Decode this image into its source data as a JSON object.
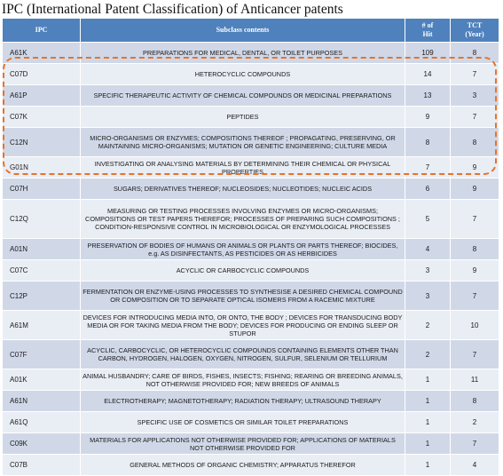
{
  "title": "IPC (International Patent Classification)  of Anticancer  patents",
  "headers": {
    "ipc": "IPC",
    "subclass": "Subclass contents",
    "hits_line1": "# of",
    "hits_line2": "Hit",
    "tct_line1": "TCT",
    "tct_line2": "(Year)"
  },
  "highlight_color": "#e4742b",
  "header_color": "#4f81bd",
  "rows": [
    {
      "ipc": "A61K",
      "content": "PREPARATIONS FOR MEDICAL, DENTAL, OR TOILET PURPOSES",
      "hits": "109",
      "tct": "8"
    },
    {
      "ipc": "C07D",
      "content": "HETEROCYCLIC COMPOUNDS",
      "hits": "14",
      "tct": "7"
    },
    {
      "ipc": "A61P",
      "content": "SPECIFIC THERAPEUTIC ACTIVITY OF CHEMICAL COMPOUNDS OR MEDICINAL PREPARATIONS",
      "hits": "13",
      "tct": "3"
    },
    {
      "ipc": "C07K",
      "content": "PEPTIDES",
      "hits": "9",
      "tct": "7"
    },
    {
      "ipc": "C12N",
      "content": "MICRO-ORGANISMS OR ENZYMES; COMPOSITIONS THEREOF ; PROPAGATING, PRESERVING, OR MAINTAINING MICRO-ORGANISMS; MUTATION OR GENETIC ENGINEERING; CULTURE MEDIA",
      "hits": "8",
      "tct": "8"
    },
    {
      "ipc": "G01N",
      "content": "INVESTIGATING OR ANALYSING MATERIALS BY DETERMINING THEIR CHEMICAL OR PHYSICAL PROPERTIES",
      "hits": "7",
      "tct": "9"
    },
    {
      "ipc": "C07H",
      "content": "SUGARS; DERIVATIVES THEREOF; NUCLEOSIDES; NUCLEOTIDES; NUCLEIC ACIDS",
      "hits": "6",
      "tct": "9"
    },
    {
      "ipc": "C12Q",
      "content": "MEASURING OR TESTING PROCESSES INVOLVING ENZYMES OR MICRO-ORGANISMS; COMPOSITIONS OR TEST PAPERS THEREFOR; PROCESSES OF PREPARING SUCH COMPOSITIONS ; CONDITION-RESPONSIVE CONTROL IN MICROBIOLOGICAL OR ENZYMOLOGICAL PROCESSES",
      "hits": "5",
      "tct": "7"
    },
    {
      "ipc": "A01N",
      "content": "PRESERVATION OF BODIES OF HUMANS OR ANIMALS OR PLANTS OR PARTS THEREOF; BIOCIDES, e.g. AS DISINFECTANTS, AS PESTICIDES OR AS HERBICIDES",
      "hits": "4",
      "tct": "8"
    },
    {
      "ipc": "C07C",
      "content": "ACYCLIC OR CARBOCYCLIC COMPOUNDS",
      "hits": "3",
      "tct": "9"
    },
    {
      "ipc": "C12P",
      "content": "FERMENTATION OR ENZYME-USING PROCESSES TO SYNTHESISE A DESIRED CHEMICAL COMPOUND OR COMPOSITION OR TO SEPARATE OPTICAL ISOMERS FROM A RACEMIC MIXTURE",
      "hits": "3",
      "tct": "7"
    },
    {
      "ipc": "A61M",
      "content": "DEVICES FOR INTRODUCING MEDIA INTO, OR ONTO, THE BODY ; DEVICES FOR TRANSDUCING BODY MEDIA OR FOR TAKING MEDIA FROM THE BODY; DEVICES FOR PRODUCING OR ENDING SLEEP OR STUPOR",
      "hits": "2",
      "tct": "10"
    },
    {
      "ipc": "C07F",
      "content": "ACYCLIC, CARBOCYCLIC, OR HETEROCYCLIC COMPOUNDS CONTAINING ELEMENTS OTHER THAN CARBON, HYDROGEN, HALOGEN, OXYGEN, NITROGEN, SULFUR, SELENIUM OR TELLURIUM",
      "hits": "2",
      "tct": "7"
    },
    {
      "ipc": "A01K",
      "content": "ANIMAL HUSBANDRY; CARE OF BIRDS, FISHES, INSECTS; FISHING; REARING OR BREEDING ANIMALS, NOT OTHERWISE PROVIDED FOR; NEW BREEDS OF ANIMALS",
      "hits": "1",
      "tct": "11"
    },
    {
      "ipc": "A61N",
      "content": "ELECTROTHERAPY; MAGNETOTHERAPY; RADIATION THERAPY; ULTRASOUND THERAPY",
      "hits": "1",
      "tct": "8"
    },
    {
      "ipc": "A61Q",
      "content": "SPECIFIC USE OF COSMETICS OR SIMILAR TOILET PREPARATIONS",
      "hits": "1",
      "tct": "2"
    },
    {
      "ipc": "C09K",
      "content": "MATERIALS FOR APPLICATIONS NOT OTHERWISE PROVIDED FOR; APPLICATIONS OF MATERIALS NOT OTHERWISE PROVIDED FOR",
      "hits": "1",
      "tct": "7"
    },
    {
      "ipc": "C07B",
      "content": "GENERAL METHODS OF ORGANIC CHEMISTRY; APPARATUS THEREFOR",
      "hits": "1",
      "tct": "4"
    }
  ]
}
